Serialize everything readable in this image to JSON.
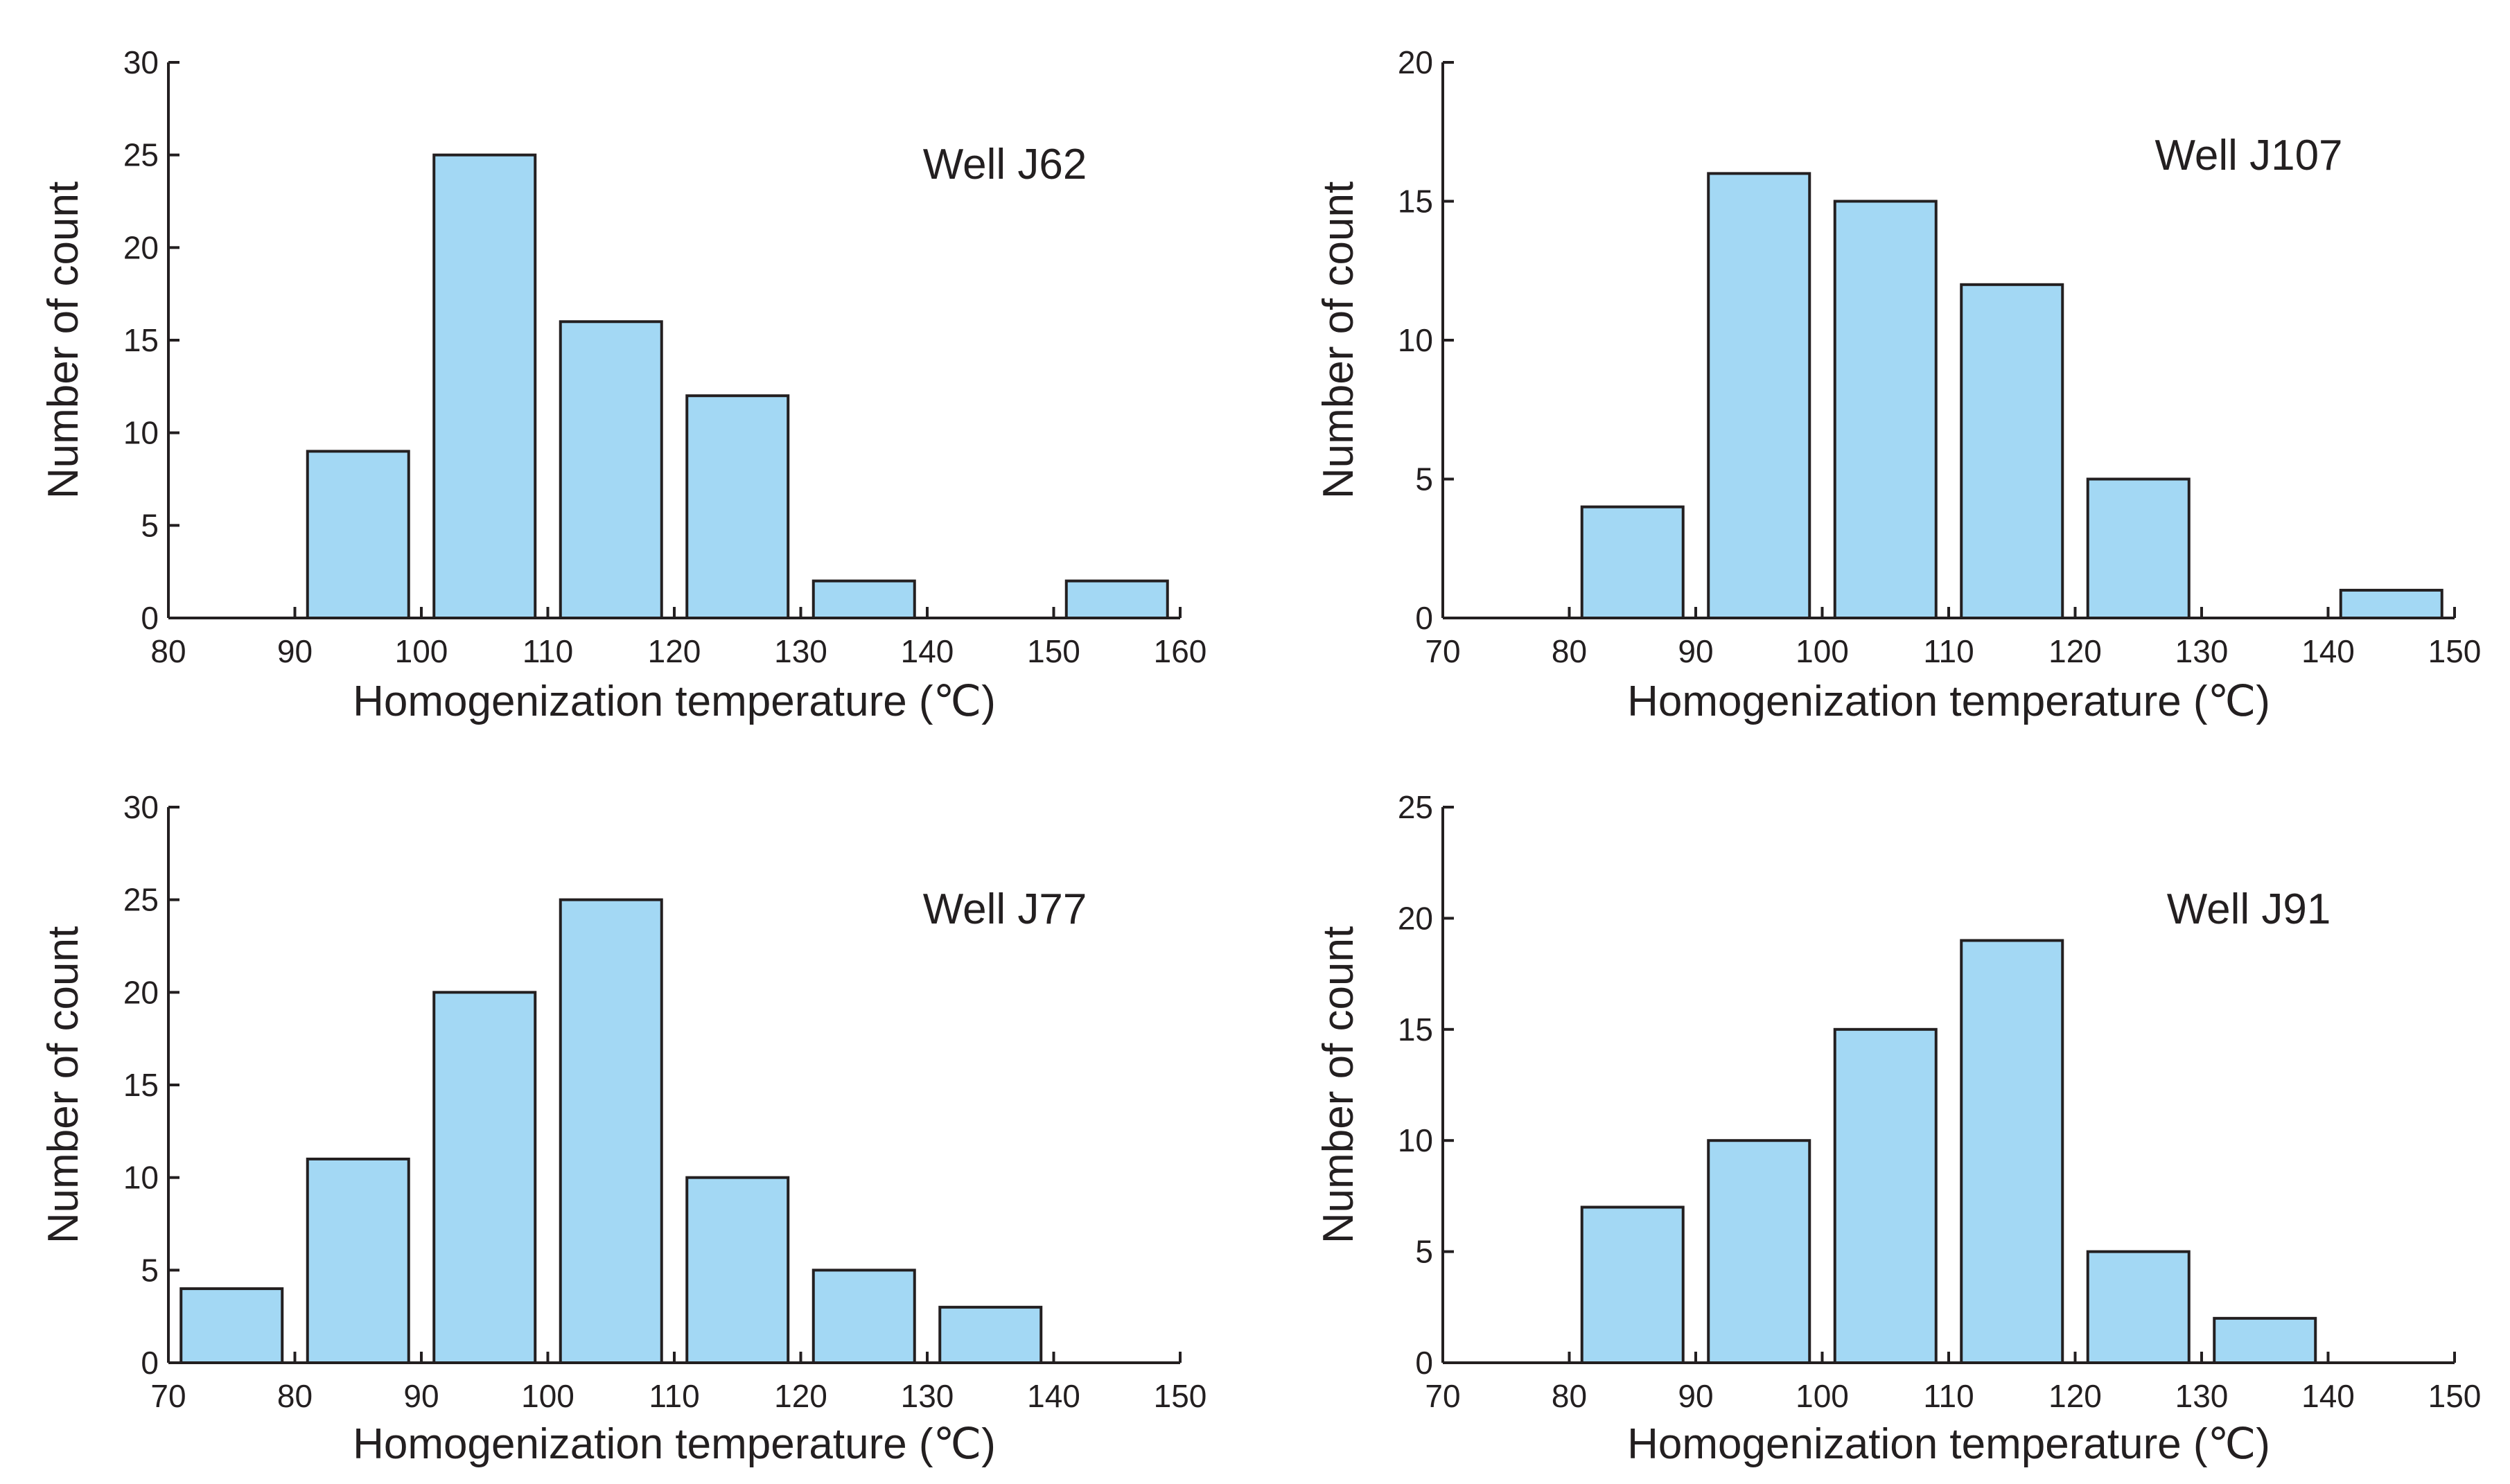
{
  "colors": {
    "bar_fill": "#a3d8f4",
    "bar_stroke": "#231f20",
    "axis": "#231f20"
  },
  "chart_data": [
    {
      "type": "bar",
      "title": "Well J62",
      "xlabel": "Homogenization temperature (℃)",
      "ylabel": "Number of count",
      "xlim": [
        80,
        160
      ],
      "ylim": [
        0,
        30
      ],
      "xticks": [
        80,
        90,
        100,
        110,
        120,
        130,
        140,
        150,
        160
      ],
      "yticks": [
        0,
        5,
        10,
        15,
        20,
        25,
        30
      ],
      "bins": [
        [
          90,
          100
        ],
        [
          100,
          110
        ],
        [
          110,
          120
        ],
        [
          120,
          130
        ],
        [
          130,
          140
        ],
        [
          150,
          160
        ]
      ],
      "values": [
        9,
        25,
        16,
        12,
        2,
        2
      ]
    },
    {
      "type": "bar",
      "title": "Well J107",
      "xlabel": "Homogenization temperature (℃)",
      "ylabel": "Number of count",
      "xlim": [
        70,
        150
      ],
      "ylim": [
        0,
        20
      ],
      "xticks": [
        70,
        80,
        90,
        100,
        110,
        120,
        130,
        140,
        150
      ],
      "yticks": [
        0,
        5,
        10,
        15,
        20
      ],
      "bins": [
        [
          80,
          90
        ],
        [
          90,
          100
        ],
        [
          100,
          110
        ],
        [
          110,
          120
        ],
        [
          120,
          130
        ],
        [
          140,
          150
        ]
      ],
      "values": [
        4,
        16,
        15,
        12,
        5,
        1
      ]
    },
    {
      "type": "bar",
      "title": "Well J77",
      "xlabel": "Homogenization temperature (℃)",
      "ylabel": "Number of count",
      "xlim": [
        70,
        150
      ],
      "ylim": [
        0,
        30
      ],
      "xticks": [
        70,
        80,
        90,
        100,
        110,
        120,
        130,
        140,
        150
      ],
      "yticks": [
        0,
        5,
        10,
        15,
        20,
        25,
        30
      ],
      "bins": [
        [
          70,
          80
        ],
        [
          80,
          90
        ],
        [
          90,
          100
        ],
        [
          100,
          110
        ],
        [
          110,
          120
        ],
        [
          120,
          130
        ],
        [
          130,
          140
        ]
      ],
      "values": [
        4,
        11,
        20,
        25,
        10,
        5,
        3
      ]
    },
    {
      "type": "bar",
      "title": "Well J91",
      "xlabel": "Homogenization temperature (℃)",
      "ylabel": "Number of count",
      "xlim": [
        70,
        150
      ],
      "ylim": [
        0,
        25
      ],
      "xticks": [
        70,
        80,
        90,
        100,
        110,
        120,
        130,
        140,
        150
      ],
      "yticks": [
        0,
        5,
        10,
        15,
        20,
        25
      ],
      "bins": [
        [
          80,
          90
        ],
        [
          90,
          100
        ],
        [
          100,
          110
        ],
        [
          110,
          120
        ],
        [
          120,
          130
        ],
        [
          130,
          140
        ]
      ],
      "values": [
        7,
        10,
        15,
        19,
        5,
        2
      ]
    }
  ]
}
